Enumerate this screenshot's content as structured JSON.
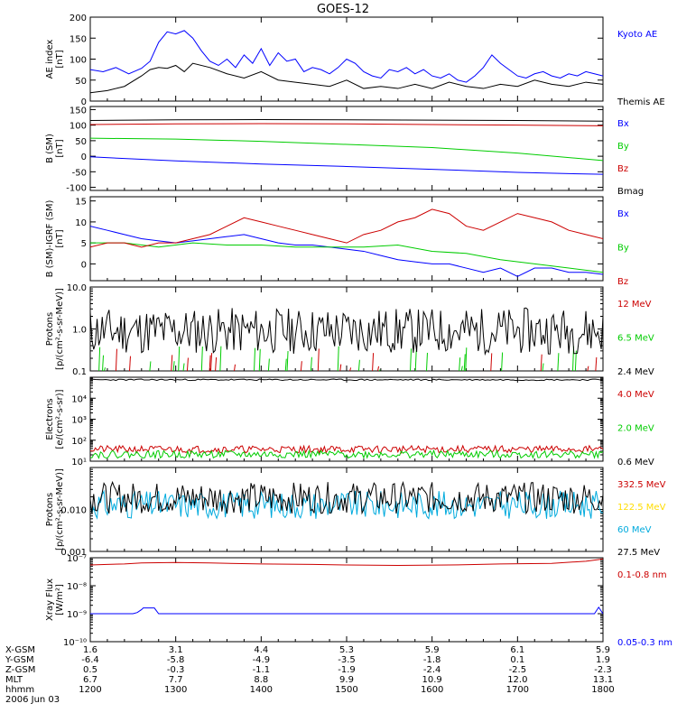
{
  "title": "GOES-12",
  "colors": {
    "blue": "#0000ff",
    "red": "#cc0000",
    "green": "#00cc00",
    "black": "#000000",
    "yellow": "#ffdd00",
    "cyan": "#00aadd"
  },
  "chart_data": {
    "type": "line",
    "x_ticks": [
      "1200",
      "1300",
      "1400",
      "1500",
      "1600",
      "1700",
      "1800"
    ],
    "x_range": [
      1200,
      1800
    ],
    "ephemeris": {
      "labels": [
        "X-GSM",
        "Y-GSM",
        "Z-GSM",
        "MLT",
        "hhmm"
      ],
      "rows": [
        [
          "1.6",
          "3.1",
          "4.4",
          "5.3",
          "5.9",
          "6.1",
          "5.9"
        ],
        [
          "-6.4",
          "-5.8",
          "-4.9",
          "-3.5",
          "-1.8",
          "0.1",
          "1.9"
        ],
        [
          "0.5",
          "-0.3",
          "-1.1",
          "-1.9",
          "-2.4",
          "-2.5",
          "-2.3"
        ],
        [
          "6.7",
          "7.7",
          "8.8",
          "9.9",
          "10.9",
          "12.0",
          "13.1"
        ],
        [
          "1200",
          "1300",
          "1400",
          "1500",
          "1600",
          "1700",
          "1800"
        ]
      ],
      "date": "2006 Jun 03"
    },
    "panels": [
      {
        "ylabel": [
          "AE index",
          "[nT]"
        ],
        "scale": "linear",
        "ylim": [
          0,
          200
        ],
        "ticks": [
          {
            "v": 0,
            "t": "0"
          },
          {
            "v": 50,
            "t": "50"
          },
          {
            "v": 100,
            "t": "100"
          },
          {
            "v": 150,
            "t": "150"
          },
          {
            "v": 200,
            "t": "200"
          }
        ],
        "series": [
          {
            "name": "Kyoto AE",
            "color": "blue",
            "kind": "line",
            "x": [
              0,
              15,
              30,
              45,
              60,
              70,
              80,
              90,
              100,
              110,
              120,
              130,
              140,
              150,
              160,
              170,
              180,
              190,
              200,
              210,
              220,
              230,
              240,
              250,
              260,
              270,
              280,
              290,
              300,
              310,
              320,
              330,
              340,
              350,
              360,
              370,
              380,
              390,
              400,
              410,
              420,
              430,
              440,
              450,
              460,
              470,
              480,
              490,
              500,
              510,
              520,
              530,
              540,
              550,
              560,
              570,
              580,
              590,
              600
            ],
            "y": [
              75,
              70,
              80,
              65,
              78,
              95,
              140,
              165,
              160,
              168,
              150,
              120,
              95,
              85,
              100,
              80,
              110,
              90,
              125,
              85,
              115,
              95,
              100,
              70,
              80,
              75,
              65,
              80,
              100,
              90,
              70,
              60,
              55,
              75,
              70,
              80,
              65,
              75,
              60,
              55,
              65,
              50,
              45,
              60,
              80,
              110,
              90,
              75,
              60,
              55,
              65,
              70,
              60,
              55,
              65,
              60,
              70,
              65,
              60
            ]
          },
          {
            "name": "Themis AE",
            "color": "black",
            "kind": "line",
            "x": [
              0,
              20,
              40,
              60,
              70,
              80,
              90,
              100,
              110,
              120,
              140,
              160,
              180,
              200,
              220,
              240,
              260,
              280,
              300,
              320,
              340,
              360,
              380,
              400,
              420,
              440,
              460,
              480,
              500,
              520,
              540,
              560,
              580,
              600
            ],
            "y": [
              20,
              25,
              35,
              60,
              75,
              80,
              78,
              85,
              70,
              90,
              80,
              65,
              55,
              70,
              50,
              45,
              40,
              35,
              50,
              30,
              35,
              30,
              40,
              30,
              45,
              35,
              30,
              40,
              35,
              50,
              40,
              35,
              45,
              40
            ]
          }
        ],
        "legend": [
          "Kyoto AE",
          "Themis AE"
        ]
      },
      {
        "ylabel": [
          "B (SM)",
          "[nT]"
        ],
        "scale": "linear",
        "ylim": [
          -110,
          160
        ],
        "ticks": [
          {
            "v": -100,
            "t": "-100"
          },
          {
            "v": -50,
            "t": "-50"
          },
          {
            "v": 0,
            "t": "0"
          },
          {
            "v": 50,
            "t": "50"
          },
          {
            "v": 100,
            "t": "100"
          },
          {
            "v": 150,
            "t": "150"
          }
        ],
        "series": [
          {
            "name": "Bx",
            "color": "blue",
            "kind": "line",
            "x": [
              0,
              100,
              200,
              300,
              400,
              500,
              560,
              600
            ],
            "y": [
              -2,
              -15,
              -25,
              -33,
              -42,
              -52,
              -56,
              -58
            ]
          },
          {
            "name": "By",
            "color": "green",
            "kind": "line",
            "x": [
              0,
              100,
              200,
              300,
              400,
              500,
              600
            ],
            "y": [
              58,
              55,
              48,
              38,
              28,
              10,
              -14
            ]
          },
          {
            "name": "Bz",
            "color": "red",
            "kind": "line",
            "x": [
              0,
              100,
              200,
              300,
              400,
              500,
              600
            ],
            "y": [
              102,
              104,
              105,
              104,
              102,
              100,
              98
            ]
          },
          {
            "name": "Bmag",
            "color": "black",
            "kind": "line",
            "x": [
              0,
              100,
              200,
              300,
              400,
              500,
              600
            ],
            "y": [
              115,
              117,
              118,
              117,
              116,
              115,
              113
            ]
          }
        ],
        "legend": [
          "Bx",
          "By",
          "Bz",
          "Bmag"
        ]
      },
      {
        "ylabel": [
          "B (SM)-IGRF (SM)",
          "[nT]"
        ],
        "scale": "linear",
        "ylim": [
          -4,
          16
        ],
        "ticks": [
          {
            "v": 0,
            "t": "0"
          },
          {
            "v": 5,
            "t": "5"
          },
          {
            "v": 10,
            "t": "10"
          },
          {
            "v": 15,
            "t": "15"
          }
        ],
        "series": [
          {
            "name": "Bx",
            "color": "blue",
            "kind": "line",
            "x": [
              0,
              20,
              40,
              60,
              80,
              100,
              120,
              140,
              160,
              180,
              200,
              220,
              240,
              260,
              280,
              300,
              320,
              340,
              360,
              380,
              400,
              420,
              440,
              460,
              480,
              500,
              520,
              540,
              560,
              580,
              600
            ],
            "y": [
              9,
              8,
              7,
              6,
              5.5,
              5,
              5.5,
              6,
              6.5,
              7,
              6,
              5,
              4.5,
              4.5,
              4,
              3.5,
              3,
              2,
              1,
              0.5,
              0,
              0,
              -1,
              -2,
              -1,
              -3,
              -1,
              -1,
              -2,
              -2,
              -2.5
            ]
          },
          {
            "name": "By",
            "color": "green",
            "kind": "line",
            "x": [
              0,
              40,
              80,
              120,
              160,
              200,
              240,
              280,
              320,
              360,
              400,
              440,
              480,
              520,
              560,
              600
            ],
            "y": [
              5,
              5,
              4,
              5,
              4.5,
              4.5,
              4,
              4,
              4,
              4.5,
              3,
              2.5,
              1,
              0,
              -1,
              -2
            ]
          },
          {
            "name": "Bz",
            "color": "red",
            "kind": "line",
            "x": [
              0,
              20,
              40,
              60,
              80,
              100,
              120,
              140,
              160,
              180,
              200,
              220,
              240,
              260,
              280,
              300,
              320,
              340,
              360,
              380,
              400,
              420,
              440,
              460,
              480,
              500,
              520,
              540,
              560,
              580,
              600
            ],
            "y": [
              4,
              5,
              5,
              4,
              5,
              5,
              6,
              7,
              9,
              11,
              10,
              9,
              8,
              7,
              6,
              5,
              7,
              8,
              10,
              11,
              13,
              12,
              9,
              8,
              10,
              12,
              11,
              10,
              8,
              7,
              6
            ]
          }
        ],
        "legend": [
          "Bx",
          "By",
          "Bz"
        ]
      },
      {
        "ylabel": [
          "Protons",
          "[p/(cm²-s-sr-MeV)]"
        ],
        "scale": "log",
        "ylim": [
          0.1,
          10
        ],
        "ticks": [
          {
            "v": 0.1,
            "t": "0.1"
          },
          {
            "v": 1,
            "t": "1.0"
          },
          {
            "v": 10,
            "t": "10.0"
          }
        ],
        "series": [
          {
            "name": "12 MeV",
            "color": "red",
            "kind": "spikes",
            "count": 18,
            "lo": 0.1,
            "hi": 0.35,
            "seed": 7
          },
          {
            "name": "6.5 MeV",
            "color": "green",
            "kind": "spikes",
            "count": 30,
            "lo": 0.1,
            "hi": 0.4,
            "seed": 3
          },
          {
            "name": "2.4 MeV",
            "color": "black",
            "kind": "noise",
            "n": 300,
            "lo": 0.25,
            "hi": 3.2,
            "seed": 11
          }
        ],
        "legend": [
          "12 MeV",
          "6.5 MeV",
          "2.4 MeV"
        ]
      },
      {
        "ylabel": [
          "Electrons",
          "[e/(cm²-s-sr)]"
        ],
        "scale": "log",
        "ylim": [
          10,
          100000
        ],
        "ticks": [
          {
            "v": 10,
            "t": "10¹"
          },
          {
            "v": 100,
            "t": "10²"
          },
          {
            "v": 1000,
            "t": "10³"
          },
          {
            "v": 10000,
            "t": "10⁴"
          }
        ],
        "series": [
          {
            "name": "4.0 MeV",
            "color": "red",
            "kind": "noise",
            "n": 300,
            "lo": 25,
            "hi": 55,
            "seed": 21
          },
          {
            "name": "2.0 MeV",
            "color": "green",
            "kind": "noise",
            "n": 300,
            "lo": 14,
            "hi": 32,
            "seed": 22
          },
          {
            "name": "0.6 MeV",
            "color": "black",
            "kind": "noise",
            "n": 200,
            "lo": 70000,
            "hi": 82000,
            "seed": 23
          }
        ],
        "legend": [
          "4.0 MeV",
          "2.0 MeV",
          "0.6 MeV"
        ]
      },
      {
        "ylabel": [
          "Protons",
          "[p/(cm²-s-sr-MeV)]"
        ],
        "scale": "log",
        "ylim": [
          0.001,
          0.1
        ],
        "ticks": [
          {
            "v": 0.001,
            "t": "0.001"
          },
          {
            "v": 0.01,
            "t": "0.010"
          }
        ],
        "series": [
          {
            "name": "332.5 MeV",
            "color": "red",
            "kind": "none"
          },
          {
            "name": "122.5 MeV",
            "color": "yellow",
            "kind": "none"
          },
          {
            "name": "60 MeV",
            "color": "cyan",
            "kind": "noise",
            "n": 300,
            "lo": 0.006,
            "hi": 0.028,
            "seed": 31
          },
          {
            "name": "27.5 MeV",
            "color": "black",
            "kind": "noise",
            "n": 300,
            "lo": 0.008,
            "hi": 0.045,
            "seed": 32
          }
        ],
        "legend": [
          "332.5 MeV",
          "122.5 MeV",
          "60 MeV",
          "27.5 MeV"
        ]
      },
      {
        "ylabel": [
          "Xray Flux",
          "[W/m²]"
        ],
        "scale": "log",
        "ylim": [
          1e-10,
          1e-07
        ],
        "ticks": [
          {
            "v": 1e-10,
            "t": "10⁻¹⁰"
          },
          {
            "v": 1e-09,
            "t": "10⁻⁹"
          },
          {
            "v": 1e-08,
            "t": "10⁻⁸"
          },
          {
            "v": 1e-07,
            "t": "10⁻⁷"
          }
        ],
        "series": [
          {
            "name": "0.1-0.8 nm",
            "color": "red",
            "kind": "line",
            "x": [
              0,
              20,
              40,
              60,
              100,
              140,
              200,
              260,
              300,
              360,
              420,
              480,
              540,
              580,
              600
            ],
            "y": [
              5.5e-08,
              5.8e-08,
              6e-08,
              6.5e-08,
              6.8e-08,
              6.5e-08,
              6e-08,
              5.8e-08,
              5.5e-08,
              5.3e-08,
              5.5e-08,
              6e-08,
              6.3e-08,
              7.5e-08,
              9e-08
            ]
          },
          {
            "name": "0.05-0.3 nm",
            "color": "blue",
            "kind": "line",
            "x": [
              0,
              50,
              55,
              60,
              62,
              75,
              80,
              100,
              200,
              300,
              400,
              500,
              590,
              595,
              600
            ],
            "y": [
              1e-09,
              1e-09,
              1.1e-09,
              1.4e-09,
              1.6e-09,
              1.6e-09,
              1e-09,
              1e-09,
              1e-09,
              1e-09,
              1e-09,
              1e-09,
              1e-09,
              1.7e-09,
              1e-09
            ]
          }
        ],
        "legend": [
          "0.1-0.8 nm",
          "0.05-0.3 nm"
        ]
      }
    ]
  }
}
